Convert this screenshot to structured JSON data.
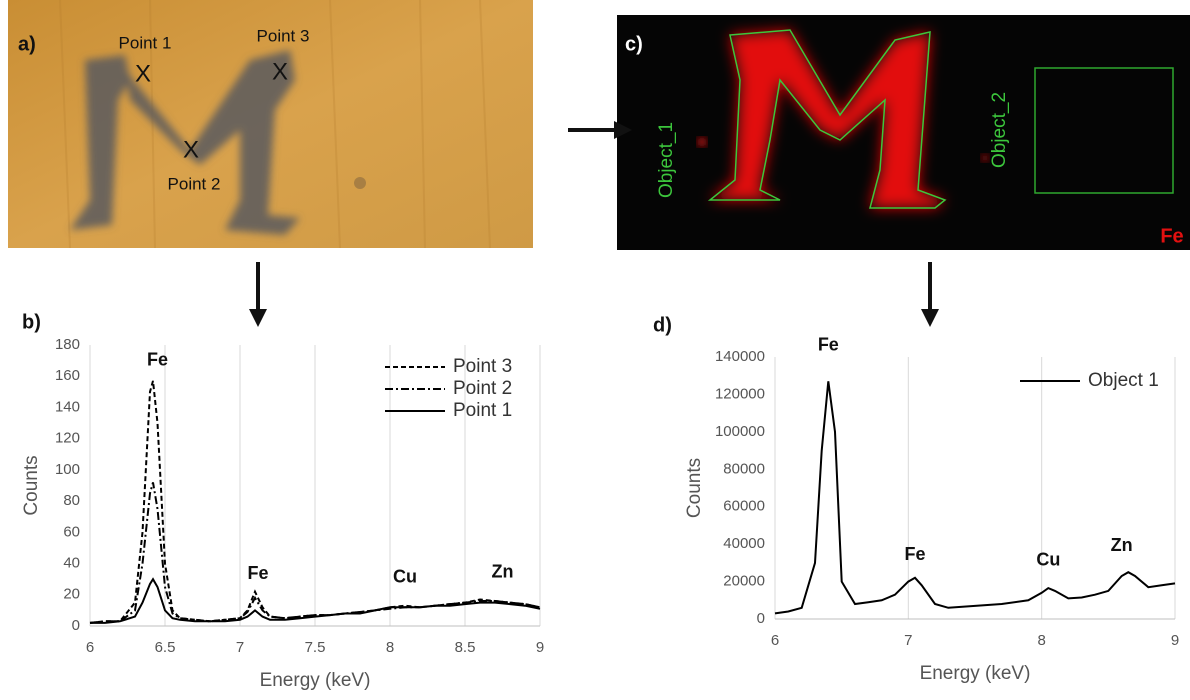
{
  "panels": {
    "a": {
      "label": "a)",
      "points": [
        {
          "label": "Point 1",
          "marker": "X"
        },
        {
          "label": "Point 3",
          "marker": "X"
        },
        {
          "label": "Point 2",
          "marker": "X"
        }
      ]
    },
    "c": {
      "label": "c)",
      "objects": [
        "Object_1",
        "Object_2"
      ],
      "element": "Fe"
    },
    "b": {
      "label": "b)"
    },
    "d": {
      "label": "d)"
    }
  },
  "chart_data": [
    {
      "type": "line",
      "xlabel": "Energy (keV)",
      "ylabel": "Counts",
      "xlim": [
        6,
        9
      ],
      "xticks": [
        6,
        6.5,
        7,
        7.5,
        8,
        8.5,
        9
      ],
      "ylim": [
        0,
        180
      ],
      "yticks": [
        0,
        20,
        40,
        60,
        80,
        100,
        120,
        140,
        160,
        180
      ],
      "grid": "x",
      "legend": "upper-right",
      "x": [
        6.0,
        6.1,
        6.2,
        6.3,
        6.35,
        6.4,
        6.42,
        6.45,
        6.5,
        6.55,
        6.6,
        6.7,
        6.8,
        6.9,
        7.0,
        7.05,
        7.1,
        7.15,
        7.2,
        7.3,
        7.4,
        7.5,
        7.6,
        7.7,
        7.8,
        7.9,
        8.0,
        8.1,
        8.2,
        8.3,
        8.4,
        8.5,
        8.6,
        8.7,
        8.8,
        8.9,
        9.0
      ],
      "series": [
        {
          "name": "Point 3",
          "color": "#000000",
          "line_style": "dashed",
          "values": [
            2,
            3,
            3,
            15,
            60,
            150,
            157,
            130,
            40,
            10,
            5,
            4,
            3,
            4,
            5,
            10,
            22,
            12,
            6,
            5,
            6,
            7,
            7,
            8,
            9,
            10,
            12,
            13,
            12,
            13,
            14,
            15,
            17,
            16,
            15,
            14,
            12
          ]
        },
        {
          "name": "Point 2",
          "color": "#000000",
          "line_style": "dashdot",
          "values": [
            2,
            3,
            3,
            10,
            40,
            85,
            92,
            75,
            25,
            8,
            5,
            4,
            3,
            4,
            5,
            9,
            18,
            10,
            6,
            5,
            6,
            7,
            7,
            8,
            9,
            10,
            11,
            12,
            12,
            13,
            14,
            15,
            16,
            16,
            15,
            14,
            12
          ]
        },
        {
          "name": "Point 1",
          "color": "#000000",
          "line_style": "solid",
          "values": [
            2,
            2,
            3,
            6,
            15,
            27,
            30,
            25,
            10,
            5,
            4,
            3,
            3,
            3,
            4,
            6,
            10,
            6,
            4,
            4,
            5,
            6,
            7,
            8,
            8,
            10,
            12,
            12,
            12,
            13,
            13,
            14,
            15,
            15,
            14,
            13,
            11
          ]
        }
      ],
      "annotations": [
        {
          "text": "Fe",
          "x": 6.45,
          "y": 170
        },
        {
          "text": "Fe",
          "x": 7.12,
          "y": 33
        },
        {
          "text": "Cu",
          "x": 8.1,
          "y": 31
        },
        {
          "text": "Zn",
          "x": 8.75,
          "y": 34
        }
      ]
    },
    {
      "type": "line",
      "xlabel": "Energy (keV)",
      "ylabel": "Counts",
      "xlim": [
        6,
        9
      ],
      "xticks": [
        6,
        7,
        8,
        9
      ],
      "ylim": [
        0,
        140000
      ],
      "yticks": [
        0,
        20000,
        40000,
        60000,
        80000,
        100000,
        120000,
        140000
      ],
      "grid": "x",
      "legend": "upper-right",
      "x": [
        6.0,
        6.1,
        6.2,
        6.3,
        6.35,
        6.4,
        6.45,
        6.5,
        6.6,
        6.7,
        6.8,
        6.9,
        7.0,
        7.05,
        7.1,
        7.2,
        7.3,
        7.5,
        7.7,
        7.9,
        8.0,
        8.05,
        8.1,
        8.2,
        8.3,
        8.4,
        8.5,
        8.6,
        8.65,
        8.7,
        8.8,
        8.9,
        9.0
      ],
      "series": [
        {
          "name": "Object 1",
          "color": "#000000",
          "line_style": "solid",
          "values": [
            3000,
            4000,
            6000,
            30000,
            90000,
            127000,
            100000,
            20000,
            8000,
            9000,
            10000,
            13000,
            20000,
            22000,
            18000,
            8000,
            6000,
            7000,
            8000,
            10000,
            14000,
            16500,
            15000,
            11000,
            11500,
            13000,
            15000,
            23000,
            25000,
            23000,
            17000,
            18000,
            19000
          ]
        }
      ],
      "annotations": [
        {
          "text": "Fe",
          "x": 6.4,
          "y": 146000
        },
        {
          "text": "Fe",
          "x": 7.05,
          "y": 34000
        },
        {
          "text": "Cu",
          "x": 8.05,
          "y": 31000
        },
        {
          "text": "Zn",
          "x": 8.6,
          "y": 39000
        }
      ]
    }
  ]
}
